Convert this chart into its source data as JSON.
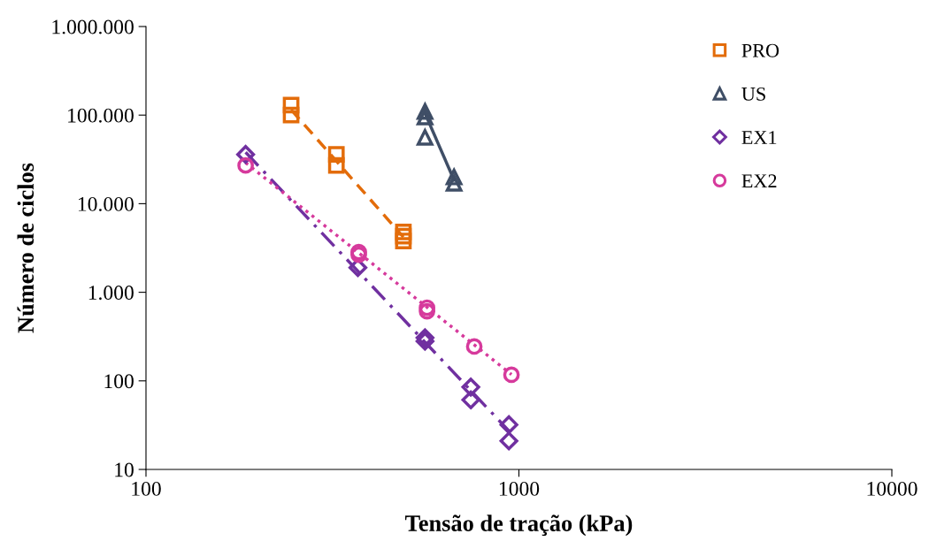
{
  "chart_data": {
    "type": "scatter",
    "xlabel": "Tensão de tração (kPa)",
    "ylabel": "Número de ciclos",
    "log": "xy",
    "xlim": [
      100,
      10000
    ],
    "xticks": [
      100,
      1000,
      10000
    ],
    "ylim": [
      10,
      1000000
    ],
    "yticks": [
      10,
      100,
      {
        "value": 1000,
        "label": "1.000"
      },
      {
        "value": 10000,
        "label": "10.000"
      },
      {
        "value": 100000,
        "label": "100.000"
      },
      {
        "value": 1000000,
        "label": "1.000.000"
      }
    ],
    "grid": false,
    "legend": "top right",
    "series": [
      {
        "name": "PRO",
        "color": "#e36c0a",
        "marker": "square",
        "x": [
          245,
          245,
          324,
          324,
          490,
          490,
          490
        ],
        "values": [
          130000,
          100000,
          36000,
          27000,
          4800,
          4300,
          3800
        ]
      },
      {
        "name": "US",
        "color": "#3f4e66",
        "marker": "triangle",
        "x": [
          560,
          560,
          560,
          670,
          670
        ],
        "values": [
          110000,
          95000,
          56000,
          20000,
          17000
        ]
      },
      {
        "name": "EX1",
        "color": "#7030a0",
        "marker": "diamond",
        "x": [
          185,
          370,
          560,
          560,
          743,
          743,
          940,
          940
        ],
        "values": [
          36000,
          1900,
          307,
          280,
          85,
          61,
          32,
          21
        ]
      },
      {
        "name": "EX2",
        "color": "#d63a9c",
        "marker": "circle",
        "x": [
          185,
          372,
          372,
          567,
          567,
          759,
          955
        ],
        "values": [
          27000,
          2850,
          2650,
          670,
          610,
          244,
          117
        ]
      },
      {
        "type": "line",
        "color": "#e36c0a",
        "marker": "none",
        "line_style": "dashed",
        "x": [
          245,
          490
        ],
        "values": [
          115000,
          4200
        ]
      },
      {
        "type": "line",
        "color": "#3f4e66",
        "marker": "none",
        "line_style": "solid",
        "x": [
          560,
          670
        ],
        "values": [
          105000,
          18500
        ]
      },
      {
        "type": "line",
        "color": "#7030a0",
        "marker": "none",
        "line_style": "dashdot",
        "x": [
          185,
          950
        ],
        "values": [
          38000,
          26
        ]
      },
      {
        "type": "line",
        "color": "#d63a9c",
        "marker": "none",
        "line_style": "dotted",
        "x": [
          185,
          955
        ],
        "values": [
          29000,
          118
        ]
      }
    ]
  }
}
